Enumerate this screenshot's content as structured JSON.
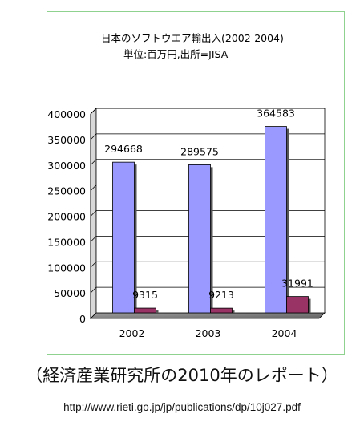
{
  "chart_data": {
    "type": "bar",
    "title": "日本のソフトウエア輸出入(2002-2004)",
    "subtitle": "単位:百万円,出所=JISA",
    "categories": [
      "2002",
      "2003",
      "2004"
    ],
    "series": [
      {
        "values": [
          294668,
          289575,
          364583
        ],
        "color": "#9999ff",
        "labels": [
          "294668",
          "289575",
          "364583"
        ]
      },
      {
        "values": [
          9315,
          9213,
          31991
        ],
        "color": "#993366",
        "labels": [
          "9315",
          "9213",
          "31991"
        ]
      }
    ],
    "ylim": [
      0,
      400000
    ],
    "yticks": [
      0,
      50000,
      100000,
      150000,
      200000,
      250000,
      300000,
      350000,
      400000
    ],
    "ytick_labels": [
      "0",
      "50000",
      "100000",
      "150000",
      "200000",
      "250000",
      "300000",
      "350000",
      "400000"
    ],
    "grid": true,
    "xlabel": "",
    "ylabel": ""
  },
  "caption": "（経済産業研究所の2010年のレポート）",
  "source_url": "http://www.rieti.go.jp/jp/publications/dp/10j027.pdf"
}
